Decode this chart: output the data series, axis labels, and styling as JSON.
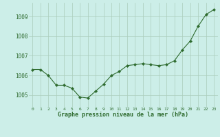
{
  "x": [
    0,
    1,
    2,
    3,
    4,
    5,
    6,
    7,
    8,
    9,
    10,
    11,
    12,
    13,
    14,
    15,
    16,
    17,
    18,
    19,
    20,
    21,
    22,
    23
  ],
  "y": [
    1006.3,
    1006.3,
    1006.0,
    1005.5,
    1005.5,
    1005.35,
    1004.9,
    1004.85,
    1005.2,
    1005.55,
    1006.0,
    1006.2,
    1006.5,
    1006.55,
    1006.6,
    1006.55,
    1006.5,
    1006.55,
    1006.75,
    1007.3,
    1007.75,
    1008.5,
    1009.1,
    1009.35
  ],
  "line_color": "#2d6a2d",
  "marker_color": "#2d6a2d",
  "bg_color": "#cceee8",
  "grid_color": "#aaccbb",
  "xlabel": "Graphe pression niveau de la mer (hPa)",
  "xlabel_color": "#2d6a2d",
  "yticks": [
    1005,
    1006,
    1007,
    1008,
    1009
  ],
  "xtick_labels": [
    "0",
    "1",
    "2",
    "3",
    "4",
    "5",
    "6",
    "7",
    "8",
    "9",
    "10",
    "11",
    "12",
    "13",
    "14",
    "15",
    "16",
    "17",
    "18",
    "19",
    "20",
    "21",
    "22",
    "23"
  ],
  "ylim": [
    1004.4,
    1009.7
  ],
  "xlim": [
    -0.5,
    23.5
  ]
}
